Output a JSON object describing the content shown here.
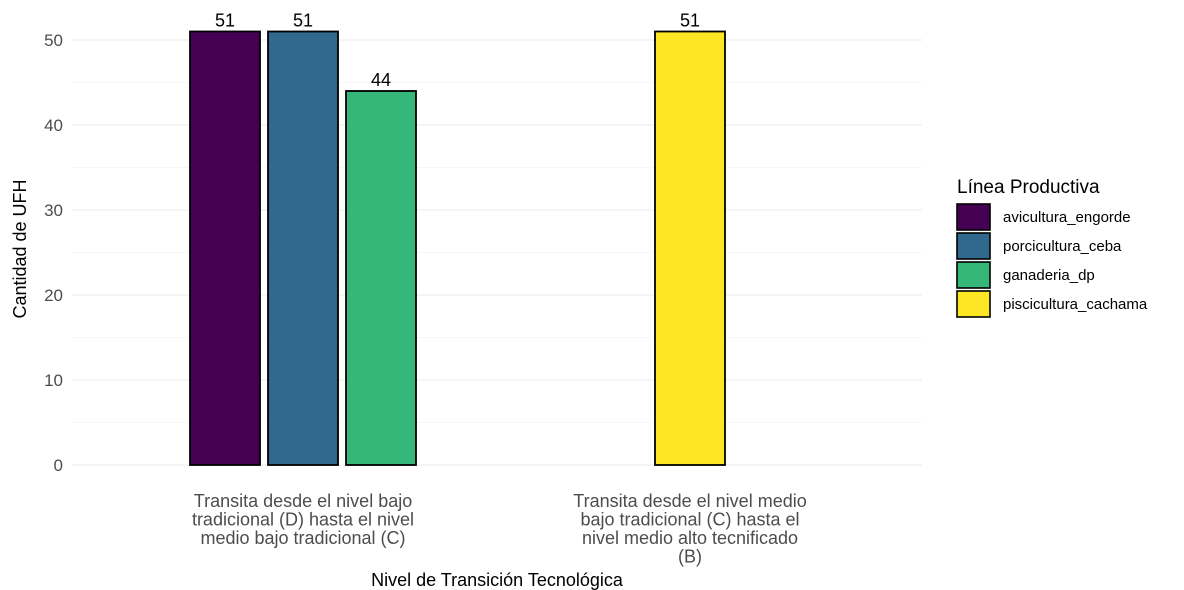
{
  "chart_data": {
    "type": "bar",
    "title": "",
    "xlabel": "Nivel de Transición Tecnológica",
    "ylabel": "Cantidad de UFH",
    "ylim": [
      0,
      51
    ],
    "yticks": [
      0,
      10,
      20,
      30,
      40,
      50
    ],
    "grid": true,
    "legend_position": "right",
    "categories": [
      "Transita desde el nivel bajo tradicional (D) hasta el nivel medio bajo tradicional (C)",
      "Transita desde el nivel medio bajo tradicional (C) hasta el nivel medio alto tecnificado (B)"
    ],
    "category_lines": [
      [
        "Transita desde el nivel bajo",
        "tradicional (D) hasta el nivel",
        "medio bajo tradicional (C)"
      ],
      [
        "Transita desde el nivel medio",
        "bajo tradicional (C) hasta el",
        "nivel medio alto tecnificado",
        "(B)"
      ]
    ],
    "legend_title": "Línea Productiva",
    "series": [
      {
        "name": "avicultura_engorde",
        "color": "#440154",
        "values": [
          51,
          null
        ]
      },
      {
        "name": "porcicultura_ceba",
        "color": "#31688E",
        "values": [
          51,
          null
        ]
      },
      {
        "name": "ganaderia_dp",
        "color": "#35B779",
        "values": [
          44,
          null
        ]
      },
      {
        "name": "piscicultura_cachama",
        "color": "#FDE725",
        "values": [
          null,
          51
        ]
      }
    ]
  }
}
